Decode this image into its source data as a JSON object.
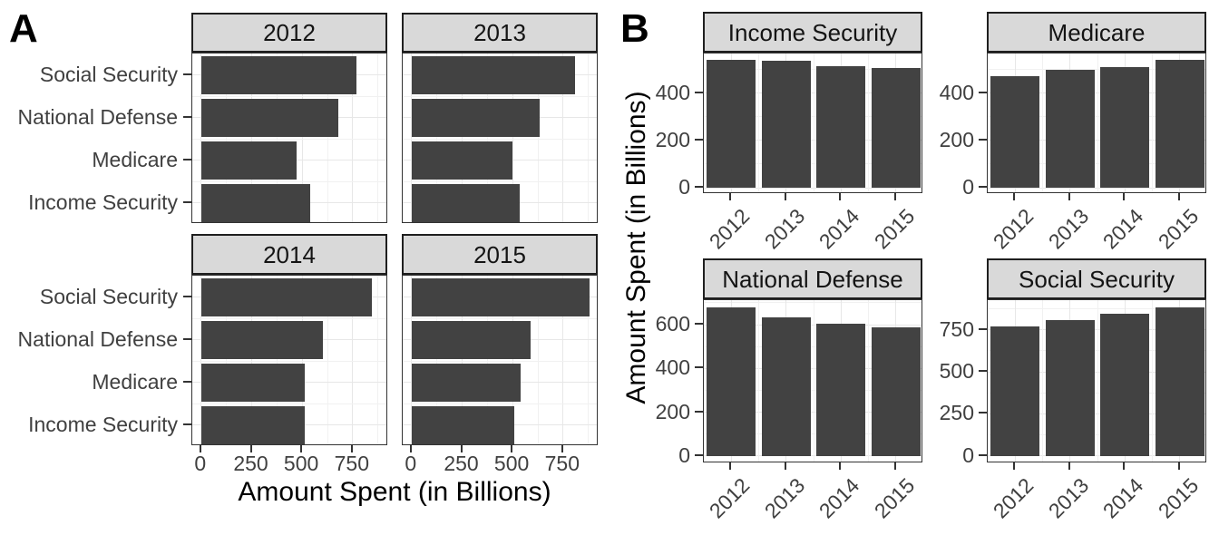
{
  "panel_a_label": "A",
  "panel_b_label": "B",
  "colors": {
    "bar_fill": "#424242",
    "strip_background": "#D9D9D9",
    "strip_border": "#1f1f1f",
    "panel_border": "#333333",
    "grid_major": "#E7E7E7",
    "grid_minor": "#F1F1F1",
    "axis_text": "#404040",
    "strip_text": "#141414",
    "title_text": "#000000",
    "tick_mark": "#333333"
  },
  "chart_data": [
    {
      "id": "A",
      "type": "bar",
      "orientation": "horizontal",
      "xlabel": "Amount Spent (in Billions)",
      "facet_by": "year",
      "categories_top_to_bottom": [
        "Social Security",
        "National Defense",
        "Medicare",
        "Income Security"
      ],
      "x_ticks": [
        0,
        250,
        500,
        750
      ],
      "x_minor": [
        125,
        375,
        625,
        875
      ],
      "xlim": [
        -44,
        926
      ],
      "grid": true,
      "series": [
        {
          "facet": "2012",
          "values": [
            768,
            678,
            472,
            541
          ]
        },
        {
          "facet": "2013",
          "values": [
            808,
            633,
            498,
            536
          ]
        },
        {
          "facet": "2014",
          "values": [
            845,
            603,
            511,
            513
          ]
        },
        {
          "facet": "2015",
          "values": [
            882,
            589,
            540,
            508
          ]
        }
      ]
    },
    {
      "id": "B",
      "type": "bar",
      "orientation": "vertical",
      "ylabel": "Amount Spent (in Billions)",
      "facet_by": "category",
      "x": [
        "2012",
        "2013",
        "2014",
        "2015"
      ],
      "grid": true,
      "facets": [
        {
          "label": "Income Security",
          "values": [
            541,
            536,
            513,
            508
          ],
          "y_ticks": [
            0,
            200,
            400
          ],
          "y_minor": [
            100,
            300,
            500
          ],
          "ylim": [
            -27,
            568
          ]
        },
        {
          "label": "Medicare",
          "values": [
            472,
            498,
            511,
            540
          ],
          "y_ticks": [
            0,
            200,
            400
          ],
          "y_minor": [
            100,
            300,
            500
          ],
          "ylim": [
            -27,
            567
          ]
        },
        {
          "label": "National Defense",
          "values": [
            678,
            633,
            603,
            589
          ],
          "y_ticks": [
            0,
            200,
            400,
            600
          ],
          "y_minor": [
            100,
            300,
            500,
            700
          ],
          "ylim": [
            -34,
            712
          ]
        },
        {
          "label": "Social Security",
          "values": [
            768,
            808,
            845,
            882
          ],
          "y_ticks": [
            0,
            250,
            500,
            750
          ],
          "y_minor": [
            125,
            375,
            625,
            875
          ],
          "ylim": [
            -44,
            926
          ]
        }
      ]
    }
  ]
}
